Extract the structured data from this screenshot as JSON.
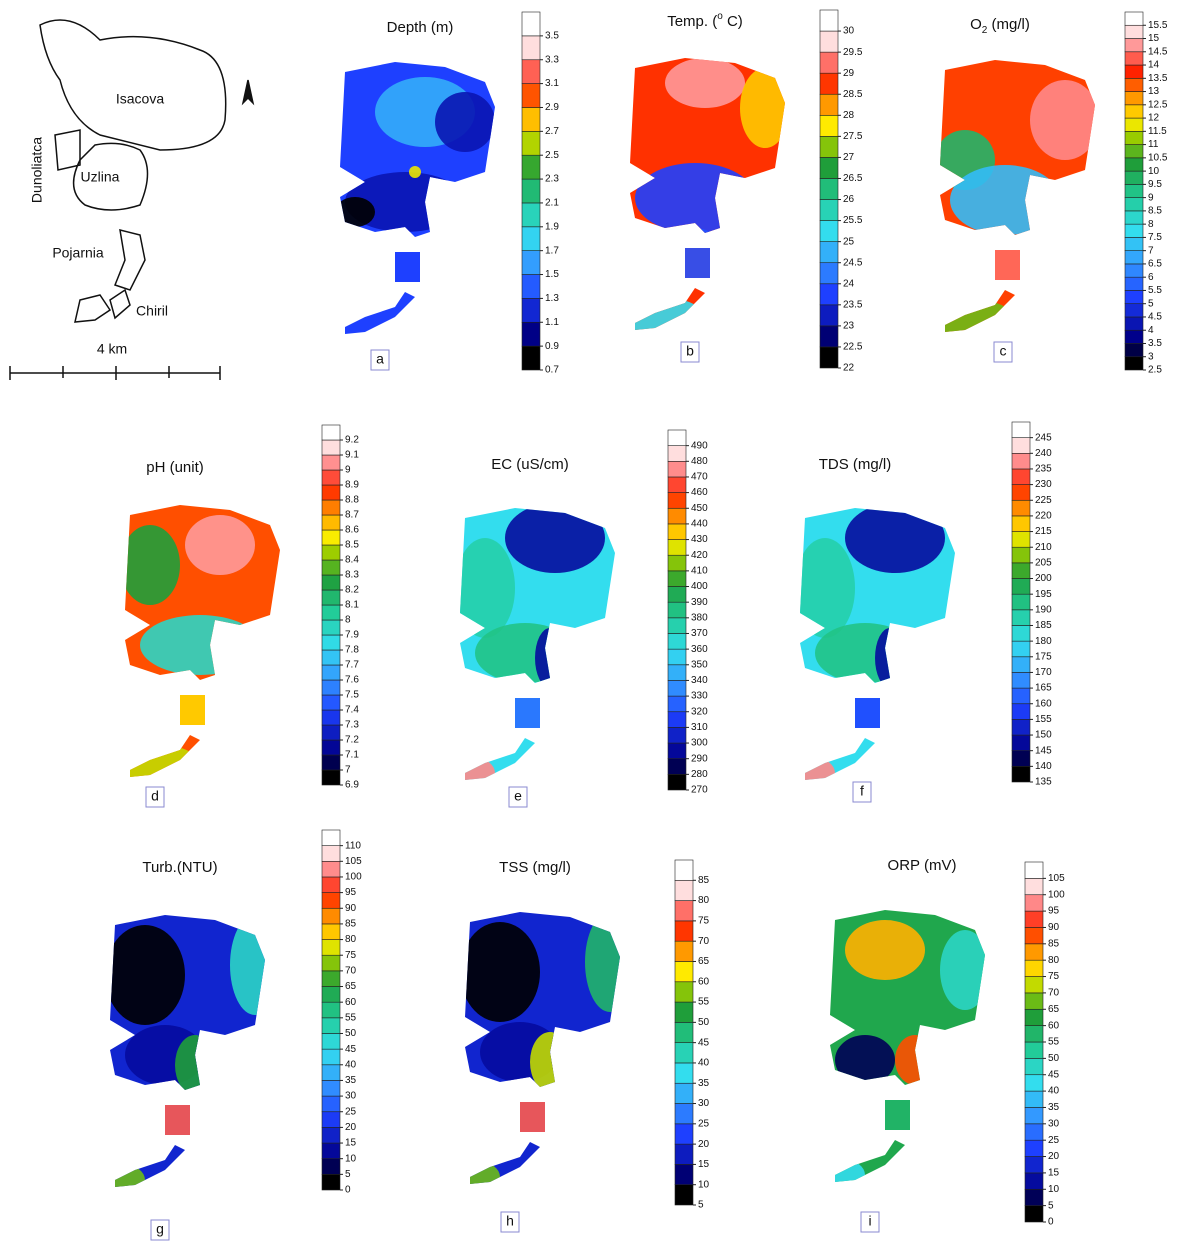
{
  "location_map": {
    "labels": [
      "Isacova",
      "Uzlina",
      "Pojarnia",
      "Chiril",
      "Dunoliatca"
    ],
    "scale": "4 km"
  },
  "panels": [
    {
      "title": [
        {
          "text": "Depth  (m)"
        }
      ],
      "letter": "a",
      "ticks": [
        0.7,
        0.9,
        1.1,
        1.3,
        1.5,
        1.7,
        1.9,
        2.1,
        2.3,
        2.5,
        2.7,
        2.9,
        3.1,
        3.3,
        3.5
      ]
    },
    {
      "title": [
        {
          "text": "Temp. ("
        },
        {
          "text": "o",
          "sup": true
        },
        {
          "text": " C)"
        }
      ],
      "letter": "b",
      "ticks": [
        22,
        22.5,
        23,
        23.5,
        24,
        24.5,
        25,
        25.5,
        26,
        26.5,
        27,
        27.5,
        28,
        28.5,
        29,
        29.5,
        30
      ]
    },
    {
      "title": [
        {
          "text": "O"
        },
        {
          "text": "2",
          "sub": true
        },
        {
          "text": " (mg/l)"
        }
      ],
      "letter": "c",
      "ticks": [
        2.5,
        3,
        3.5,
        4,
        4.5,
        5,
        5.5,
        6,
        6.5,
        7,
        7.5,
        8,
        8.5,
        9,
        9.5,
        10,
        10.5,
        11,
        11.5,
        12,
        12.5,
        13,
        13.5,
        14,
        14.5,
        15,
        15.5
      ]
    },
    {
      "title": [
        {
          "text": "pH (unit)"
        }
      ],
      "letter": "d",
      "ticks": [
        6.9,
        7,
        7.1,
        7.2,
        7.3,
        7.4,
        7.5,
        7.6,
        7.7,
        7.8,
        7.9,
        8,
        8.1,
        8.2,
        8.3,
        8.4,
        8.5,
        8.6,
        8.7,
        8.8,
        8.9,
        9,
        9.1,
        9.2
      ]
    },
    {
      "title": [
        {
          "text": "EC (uS/cm)"
        }
      ],
      "letter": "e",
      "ticks": [
        270,
        280,
        290,
        300,
        310,
        320,
        330,
        340,
        350,
        360,
        370,
        380,
        390,
        400,
        410,
        420,
        430,
        440,
        450,
        460,
        470,
        480,
        490
      ]
    },
    {
      "title": [
        {
          "text": "TDS (mg/l)"
        }
      ],
      "letter": "f",
      "ticks": [
        135,
        140,
        145,
        150,
        155,
        160,
        165,
        170,
        175,
        180,
        185,
        190,
        195,
        200,
        205,
        210,
        215,
        220,
        225,
        230,
        235,
        240,
        245
      ]
    },
    {
      "title": [
        {
          "text": "Turb.(NTU)"
        }
      ],
      "letter": "g",
      "ticks": [
        0,
        5,
        10,
        15,
        20,
        25,
        30,
        35,
        40,
        45,
        50,
        55,
        60,
        65,
        70,
        75,
        80,
        85,
        90,
        95,
        100,
        105,
        110
      ]
    },
    {
      "title": [
        {
          "text": "TSS (mg/l)"
        }
      ],
      "letter": "h",
      "ticks": [
        5,
        10,
        15,
        20,
        25,
        30,
        35,
        40,
        45,
        50,
        55,
        60,
        65,
        70,
        75,
        80,
        85
      ]
    },
    {
      "title": [
        {
          "text": "ORP (mV)"
        }
      ],
      "letter": "i",
      "ticks": [
        0,
        5,
        10,
        15,
        20,
        25,
        30,
        35,
        40,
        45,
        50,
        55,
        60,
        65,
        70,
        75,
        80,
        85,
        90,
        95,
        100,
        105
      ]
    }
  ]
}
